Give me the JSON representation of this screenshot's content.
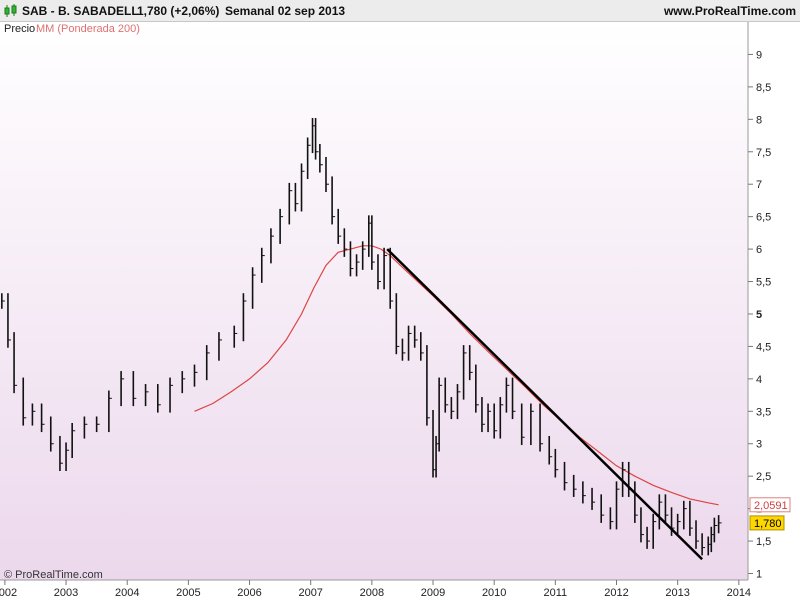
{
  "header": {
    "symbol": "SAB - B. SABADELL",
    "price": "1,780 (+2,06%)",
    "period": "Semanal  02 sep 2013",
    "site": "www.ProRealTime.com"
  },
  "legend": {
    "price": "Precio",
    "ma": "MM (Ponderada 200)"
  },
  "footer": {
    "copyright": "© ProRealTime.com"
  },
  "colors": {
    "ma": "#dd4444",
    "price": "#111111",
    "trend": "#000000",
    "last_price_bg": "#ffd700",
    "bg_top": "#ffffff",
    "bg_bottom": "#ecd8ec"
  },
  "chart_data": {
    "type": "line",
    "title": "",
    "ylim": [
      0.9,
      9.5
    ],
    "xlim": [
      2001.92,
      2014.15
    ],
    "y_ticks": [
      {
        "v": 9,
        "label": "9"
      },
      {
        "v": 8.5,
        "label": "8,5"
      },
      {
        "v": 8,
        "label": "8"
      },
      {
        "v": 7.5,
        "label": "7,5"
      },
      {
        "v": 7,
        "label": "7"
      },
      {
        "v": 6.5,
        "label": "6,5"
      },
      {
        "v": 6,
        "label": "6"
      },
      {
        "v": 5.5,
        "label": "5,5"
      },
      {
        "v": 5,
        "label": "5"
      },
      {
        "v": 4.5,
        "label": "4,5"
      },
      {
        "v": 4,
        "label": "4"
      },
      {
        "v": 3.5,
        "label": "3,5"
      },
      {
        "v": 3,
        "label": "3"
      },
      {
        "v": 2.5,
        "label": "2,5"
      },
      {
        "v": 2,
        "label": "2"
      },
      {
        "v": 1.5,
        "label": "1,5"
      },
      {
        "v": 1,
        "label": "1"
      }
    ],
    "x_ticks": [
      {
        "v": 2002,
        "label": "2002"
      },
      {
        "v": 2003,
        "label": "2003"
      },
      {
        "v": 2004,
        "label": "2004"
      },
      {
        "v": 2005,
        "label": "2005"
      },
      {
        "v": 2006,
        "label": "2006"
      },
      {
        "v": 2007,
        "label": "2007"
      },
      {
        "v": 2008,
        "label": "2008"
      },
      {
        "v": 2009,
        "label": "2009"
      },
      {
        "v": 2010,
        "label": "2010"
      },
      {
        "v": 2011,
        "label": "2011"
      },
      {
        "v": 2012,
        "label": "2012"
      },
      {
        "v": 2013,
        "label": "2013"
      },
      {
        "v": 2014,
        "label": "2014"
      }
    ],
    "series": [
      {
        "name": "Precio",
        "x": [
          2001.95,
          2002.05,
          2002.15,
          2002.3,
          2002.45,
          2002.6,
          2002.75,
          2002.9,
          2003.0,
          2003.1,
          2003.3,
          2003.5,
          2003.7,
          2003.9,
          2004.1,
          2004.3,
          2004.5,
          2004.7,
          2004.9,
          2005.1,
          2005.3,
          2005.5,
          2005.75,
          2005.9,
          2006.05,
          2006.2,
          2006.35,
          2006.5,
          2006.65,
          2006.75,
          2006.85,
          2006.95,
          2007.03,
          2007.08,
          2007.15,
          2007.25,
          2007.35,
          2007.45,
          2007.55,
          2007.65,
          2007.75,
          2007.85,
          2007.95,
          2008.0,
          2008.1,
          2008.2,
          2008.3,
          2008.4,
          2008.5,
          2008.6,
          2008.7,
          2008.8,
          2008.9,
          2009.0,
          2009.05,
          2009.1,
          2009.2,
          2009.3,
          2009.4,
          2009.5,
          2009.6,
          2009.7,
          2009.8,
          2009.9,
          2010.0,
          2010.1,
          2010.2,
          2010.3,
          2010.45,
          2010.6,
          2010.75,
          2010.9,
          2011.0,
          2011.15,
          2011.3,
          2011.45,
          2011.6,
          2011.75,
          2011.9,
          2012.0,
          2012.1,
          2012.2,
          2012.3,
          2012.4,
          2012.5,
          2012.6,
          2012.7,
          2012.8,
          2012.9,
          2013.0,
          2013.1,
          2013.2,
          2013.3,
          2013.4,
          2013.5,
          2013.55,
          2013.6,
          2013.67
        ],
        "values": [
          5.2,
          4.6,
          3.9,
          3.4,
          3.5,
          3.3,
          3.0,
          2.7,
          2.9,
          3.2,
          3.3,
          3.3,
          3.7,
          4.0,
          3.7,
          3.8,
          3.6,
          3.9,
          4.0,
          4.1,
          4.4,
          4.6,
          4.7,
          5.2,
          5.6,
          5.9,
          6.2,
          6.5,
          6.9,
          6.7,
          7.2,
          7.6,
          7.9,
          7.5,
          7.3,
          7.0,
          6.5,
          6.2,
          6.0,
          5.7,
          5.8,
          6.0,
          6.4,
          5.8,
          5.5,
          5.9,
          5.2,
          4.5,
          4.4,
          4.7,
          4.6,
          4.4,
          3.4,
          2.6,
          3.0,
          3.9,
          3.6,
          3.5,
          3.8,
          4.4,
          4.1,
          3.6,
          3.3,
          3.5,
          3.2,
          3.6,
          3.9,
          3.5,
          3.1,
          3.5,
          3.0,
          2.8,
          2.6,
          2.4,
          2.3,
          2.2,
          2.1,
          1.9,
          1.8,
          2.3,
          2.6,
          2.3,
          1.9,
          1.6,
          1.5,
          1.8,
          2.1,
          1.9,
          1.7,
          1.8,
          2.0,
          1.7,
          1.5,
          1.4,
          1.45,
          1.6,
          1.74,
          1.78
        ]
      },
      {
        "name": "MM (Ponderada 200)",
        "x": [
          2005.1,
          2005.4,
          2005.7,
          2006.0,
          2006.3,
          2006.6,
          2006.85,
          2007.05,
          2007.25,
          2007.45,
          2007.65,
          2007.85,
          2008.0,
          2008.15,
          2008.3,
          2008.5,
          2008.75,
          2009.0,
          2009.3,
          2009.6,
          2009.9,
          2010.2,
          2010.5,
          2010.8,
          2011.1,
          2011.4,
          2011.7,
          2012.0,
          2012.3,
          2012.6,
          2012.9,
          2013.2,
          2013.5,
          2013.67
        ],
        "values": [
          3.5,
          3.62,
          3.8,
          4.0,
          4.25,
          4.6,
          5.0,
          5.4,
          5.75,
          5.95,
          6.0,
          6.05,
          6.05,
          6.0,
          5.9,
          5.72,
          5.5,
          5.28,
          5.0,
          4.7,
          4.42,
          4.15,
          3.88,
          3.6,
          3.35,
          3.1,
          2.88,
          2.66,
          2.5,
          2.36,
          2.25,
          2.15,
          2.09,
          2.0591
        ]
      }
    ],
    "trendlines": [
      {
        "x": [
          2008.25,
          2013.4
        ],
        "y": [
          6.0,
          1.22
        ]
      }
    ],
    "labels": {
      "ma_last": "2,0591",
      "price_last": "1,780"
    }
  }
}
